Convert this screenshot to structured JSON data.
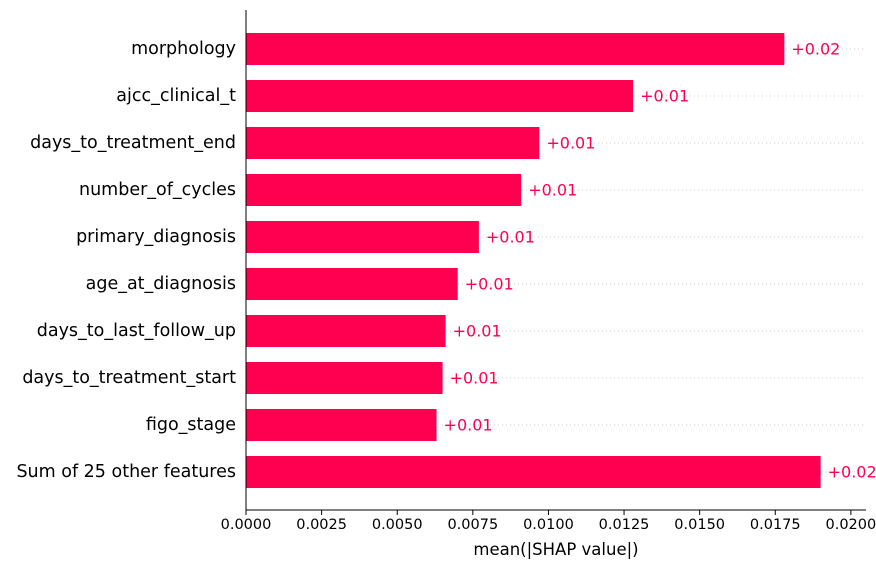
{
  "colors": {
    "bar": "#ff0051",
    "value_label": "#ff0051",
    "axis": "#000000",
    "grid_dotted": "#cccccc"
  },
  "chart_data": {
    "type": "bar",
    "orientation": "horizontal",
    "categories": [
      "morphology",
      "ajcc_clinical_t",
      "days_to_treatment_end",
      "number_of_cycles",
      "primary_diagnosis",
      "age_at_diagnosis",
      "days_to_last_follow_up",
      "days_to_treatment_start",
      "figo_stage",
      "Sum of 25 other features"
    ],
    "values": [
      0.0178,
      0.0128,
      0.0097,
      0.0091,
      0.0077,
      0.007,
      0.0066,
      0.0065,
      0.0063,
      0.019
    ],
    "value_labels": [
      "+0.02",
      "+0.01",
      "+0.01",
      "+0.01",
      "+0.01",
      "+0.01",
      "+0.01",
      "+0.01",
      "+0.01",
      "+0.02"
    ],
    "xlabel": "mean(|SHAP value|)",
    "ylabel": "",
    "title": "",
    "xlim": [
      0.0,
      0.0205
    ],
    "xticks": [
      0.0,
      0.0025,
      0.005,
      0.0075,
      0.01,
      0.0125,
      0.015,
      0.0175,
      0.02
    ],
    "xtick_labels": [
      "0.0000",
      "0.0025",
      "0.0050",
      "0.0075",
      "0.0100",
      "0.0125",
      "0.0150",
      "0.0175",
      "0.0200"
    ],
    "grid": "dotted row guides",
    "legend": "none"
  }
}
